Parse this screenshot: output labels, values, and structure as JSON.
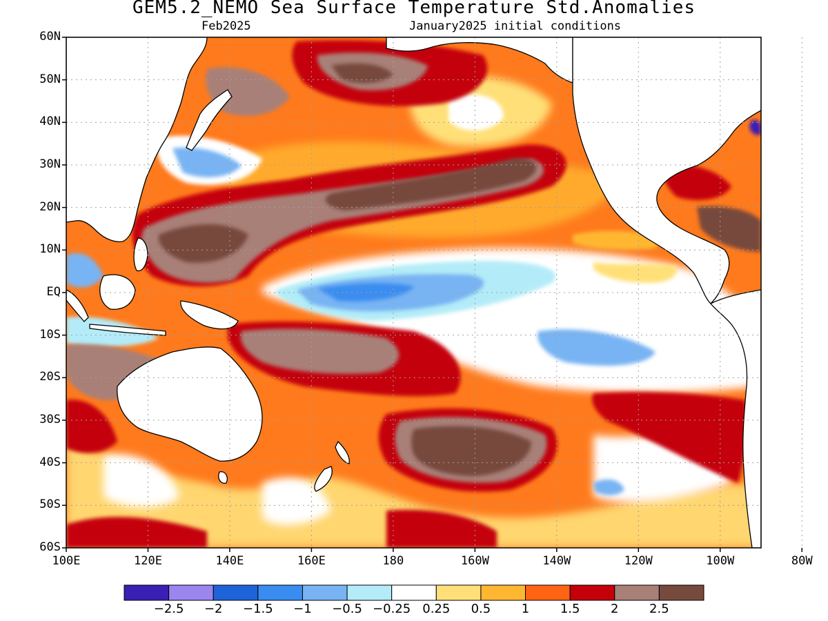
{
  "title": "GEM5.2_NEMO Sea Surface Temperature Std.Anomalies",
  "subtitle_left": "Feb2025",
  "subtitle_right": "January2025 initial conditions",
  "lat_labels": [
    "60N",
    "50N",
    "40N",
    "30N",
    "20N",
    "10N",
    "EQ",
    "10S",
    "20S",
    "30S",
    "40S",
    "50S",
    "60S"
  ],
  "lon_labels": [
    "100E",
    "120E",
    "140E",
    "160E",
    "180",
    "160W",
    "140W",
    "120W",
    "100W",
    "80W"
  ],
  "colorbar": {
    "colors": [
      "#3a1fb4",
      "#9b86ef",
      "#1f63db",
      "#3a8df0",
      "#78b4f3",
      "#b3ecf8",
      "#ffffff",
      "#ffe078",
      "#ffb732",
      "#ff6414",
      "#c4000a",
      "#a88078",
      "#774a3e"
    ],
    "labels": [
      "-2.5",
      "-2",
      "-1.5",
      "-1",
      "-0.5",
      "-0.25",
      "0.25",
      "0.5",
      "1",
      "1.5",
      "2",
      "2.5"
    ]
  },
  "colors": {
    "land": "#ffffff",
    "coast": "#000000",
    "gridline": "#a0a0a0"
  }
}
